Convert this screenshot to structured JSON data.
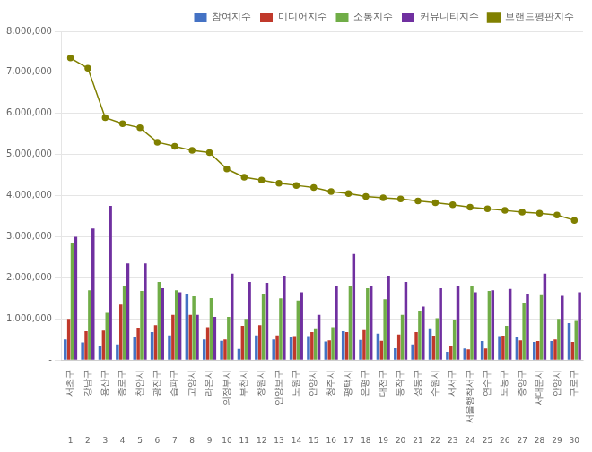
{
  "chart_data": {
    "type": "bar",
    "categories": [
      "서초구",
      "강남구",
      "용산구",
      "종로구",
      "천안시",
      "광진구",
      "습파구",
      "고양시",
      "라온시",
      "의정부시",
      "부천시",
      "창원시",
      "안양보구",
      "노원구",
      "안양시",
      "청주시",
      "평택시",
      "은평구",
      "대전구",
      "동작구",
      "성동구",
      "수원시",
      "서서구",
      "서울행착서구",
      "연수구",
      "도농구",
      "중양구",
      "서대문시",
      "안양시",
      "구로구"
    ],
    "x2_categories": [
      "1",
      "2",
      "3",
      "4",
      "5",
      "6",
      "7",
      "8",
      "9",
      "10",
      "11",
      "12",
      "13",
      "14",
      "15",
      "16",
      "17",
      "18",
      "19",
      "20",
      "21",
      "22",
      "23",
      "24",
      "25",
      "26",
      "27",
      "28",
      "29",
      "30"
    ],
    "series": [
      {
        "name": "참여지수",
        "color": "#4472c4",
        "values": [
          500000,
          430000,
          330000,
          380000,
          560000,
          680000,
          600000,
          1600000,
          500000,
          470000,
          270000,
          600000,
          500000,
          550000,
          580000,
          450000,
          700000,
          490000,
          640000,
          290000,
          380000,
          750000,
          200000,
          280000,
          460000,
          580000,
          570000,
          440000,
          460000,
          900000
        ]
      },
      {
        "name": "미디어지수",
        "color": "#c0392b",
        "values": [
          1000000,
          700000,
          720000,
          1350000,
          770000,
          850000,
          1100000,
          1100000,
          800000,
          500000,
          830000,
          850000,
          600000,
          580000,
          680000,
          480000,
          680000,
          730000,
          470000,
          620000,
          680000,
          590000,
          330000,
          260000,
          280000,
          590000,
          480000,
          460000,
          500000,
          440000
        ]
      },
      {
        "name": "소통지수",
        "color": "#70ad47",
        "values": [
          2850000,
          1700000,
          1150000,
          1800000,
          1680000,
          1900000,
          1700000,
          1550000,
          1510000,
          1050000,
          1000000,
          1600000,
          1500000,
          1450000,
          750000,
          800000,
          1800000,
          1750000,
          1480000,
          1100000,
          1200000,
          1020000,
          980000,
          1800000,
          1680000,
          830000,
          1400000,
          1580000,
          1000000,
          950000
        ]
      },
      {
        "name": "커뮤니티지수",
        "color": "#7030a0",
        "values": [
          3000000,
          3200000,
          3750000,
          2350000,
          2350000,
          1750000,
          1650000,
          1100000,
          1050000,
          2100000,
          1900000,
          1880000,
          2050000,
          1650000,
          1100000,
          1800000,
          2580000,
          1800000,
          2050000,
          1900000,
          1300000,
          1750000,
          1800000,
          1650000,
          1700000,
          1730000,
          1600000,
          2100000,
          1560000,
          1650000
        ]
      },
      {
        "name": "브랜드평판지수",
        "color": "#808000",
        "type": "line",
        "marker": "circle",
        "values": [
          7350000,
          7100000,
          5900000,
          5750000,
          5650000,
          5300000,
          5200000,
          5100000,
          5050000,
          4650000,
          4450000,
          4380000,
          4300000,
          4250000,
          4200000,
          4100000,
          4050000,
          3980000,
          3950000,
          3920000,
          3870000,
          3830000,
          3780000,
          3720000,
          3680000,
          3640000,
          3600000,
          3570000,
          3530000,
          3400000
        ]
      }
    ],
    "ylim": [
      0,
      8000000
    ],
    "yticks": [
      {
        "value": 0,
        "label": "-"
      },
      {
        "value": 1000000,
        "label": "1,000,000"
      },
      {
        "value": 2000000,
        "label": "2,000,000"
      },
      {
        "value": 3000000,
        "label": "3,000,000"
      },
      {
        "value": 4000000,
        "label": "4,000,000"
      },
      {
        "value": 5000000,
        "label": "5,000,000"
      },
      {
        "value": 6000000,
        "label": "6,000,000"
      },
      {
        "value": 7000000,
        "label": "7,000,000"
      },
      {
        "value": 8000000,
        "label": "8,000,000"
      }
    ],
    "grid": true,
    "legend": "upper right"
  }
}
